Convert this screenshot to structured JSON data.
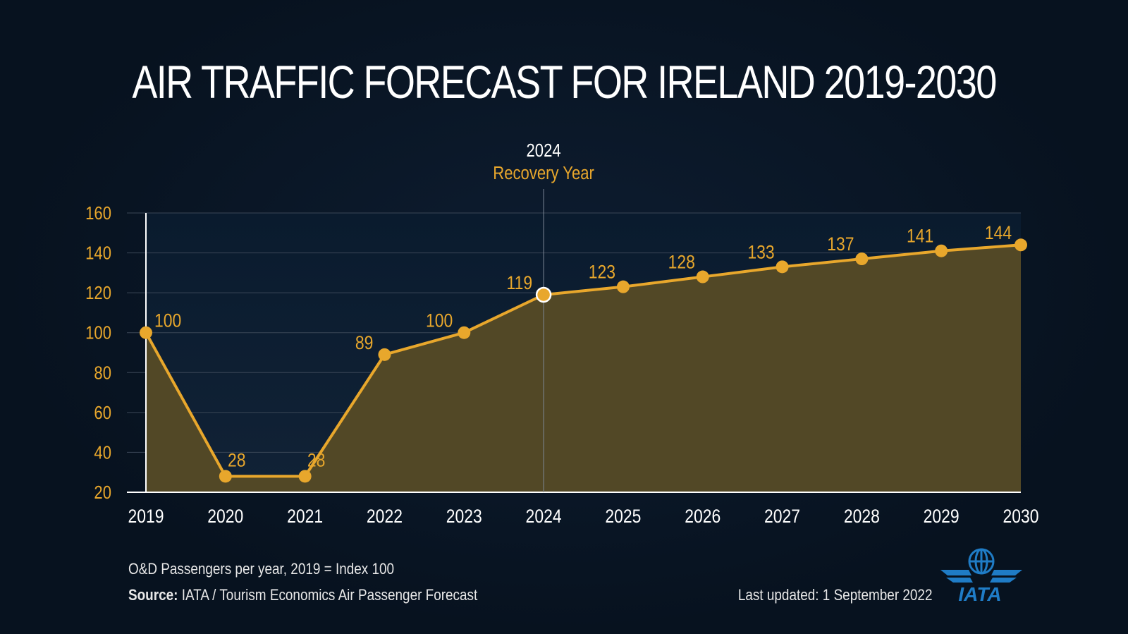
{
  "title": "AIR TRAFFIC FORECAST FOR IRELAND 2019-2030",
  "annotation": {
    "year": "2024",
    "label": "Recovery Year",
    "x": 2024
  },
  "chart_data": {
    "type": "area",
    "x": [
      2019,
      2020,
      2021,
      2022,
      2023,
      2024,
      2025,
      2026,
      2027,
      2028,
      2029,
      2030
    ],
    "values": [
      100,
      28,
      28,
      89,
      100,
      119,
      123,
      128,
      133,
      137,
      141,
      144
    ],
    "ylim": [
      20,
      160
    ],
    "yticks": [
      20,
      40,
      60,
      80,
      100,
      120,
      140,
      160
    ],
    "grid": true,
    "highlight_x": 2024
  },
  "footer": {
    "note": "O&D Passengers per year, 2019 = Index 100",
    "source_label": "Source:",
    "source_text": " IATA / Tourism Economics Air Passenger Forecast",
    "updated": "Last updated: 1 September 2022"
  },
  "logo": {
    "text": "IATA"
  },
  "colors": {
    "accent": "#e8a72c",
    "fill": "#524826",
    "background": "#07121f",
    "grid": "#3a4656"
  }
}
